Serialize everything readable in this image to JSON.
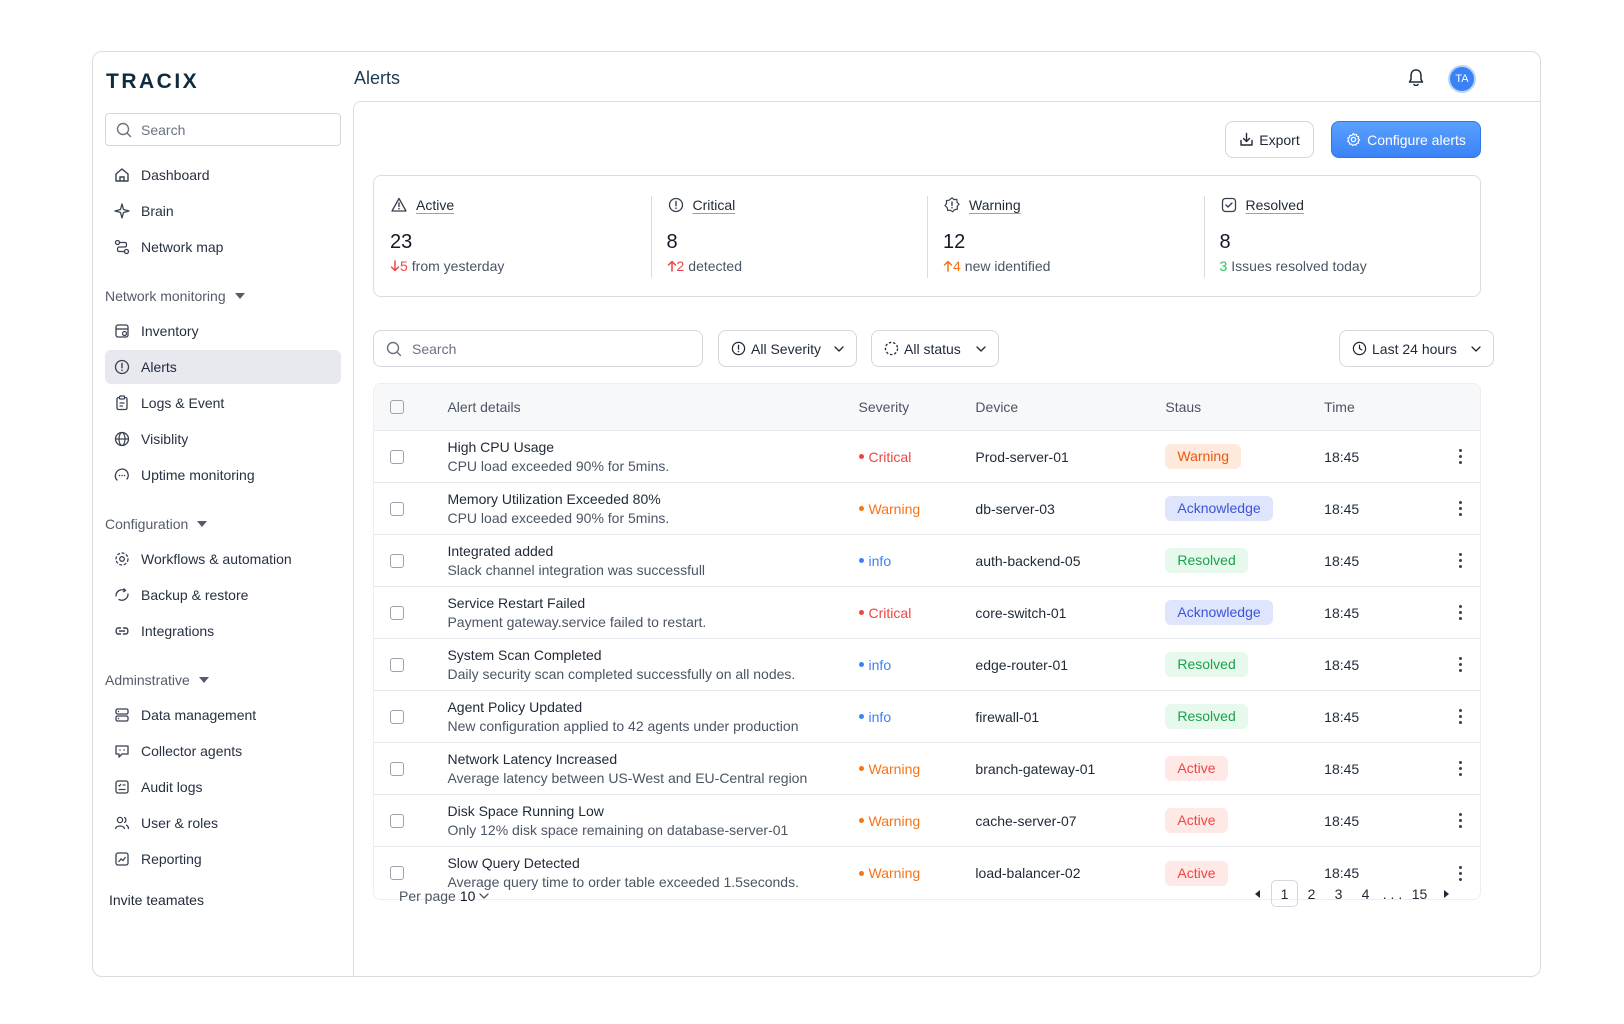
{
  "app": {
    "logo": "TRACIX",
    "page_title": "Alerts",
    "avatar_initials": "TA"
  },
  "sidebar": {
    "search_placeholder": "Search",
    "top_items": [
      {
        "label": "Dashboard",
        "icon": "home-icon"
      },
      {
        "label": "Brain",
        "icon": "sparkle-icon"
      },
      {
        "label": "Network map",
        "icon": "route-icon"
      }
    ],
    "groups": [
      {
        "title": "Network monitoring",
        "items": [
          {
            "label": "Inventory",
            "icon": "inventory-icon"
          },
          {
            "label": "Alerts",
            "icon": "alert-circle-icon",
            "active": true
          },
          {
            "label": "Logs & Event",
            "icon": "clipboard-icon"
          },
          {
            "label": "Visiblity",
            "icon": "globe-icon"
          },
          {
            "label": "Uptime monitoring",
            "icon": "uptime-icon"
          }
        ]
      },
      {
        "title": "Configuration",
        "items": [
          {
            "label": "Workflows & automation",
            "icon": "workflow-gear-icon"
          },
          {
            "label": "Backup & restore",
            "icon": "backup-icon"
          },
          {
            "label": "Integrations",
            "icon": "link-icon"
          }
        ]
      },
      {
        "title": "Adminstrative",
        "items": [
          {
            "label": "Data management",
            "icon": "database-icon"
          },
          {
            "label": "Collector agents",
            "icon": "agent-icon"
          },
          {
            "label": "Audit logs",
            "icon": "audit-icon"
          },
          {
            "label": "User & roles",
            "icon": "users-icon"
          },
          {
            "label": "Reporting",
            "icon": "report-icon"
          }
        ]
      }
    ],
    "invite_label": "Invite teamates"
  },
  "toolbar": {
    "export_label": "Export",
    "configure_label": "Configure alerts"
  },
  "stats": [
    {
      "label": "Active",
      "icon": "warning-triangle-icon",
      "value": "23",
      "delta": "5",
      "delta_dir": "down",
      "delta_text": "from yesterday"
    },
    {
      "label": "Critical",
      "icon": "alert-circle-icon",
      "value": "8",
      "delta": "2",
      "delta_dir": "up-red",
      "delta_text": "detected"
    },
    {
      "label": "Warning",
      "icon": "warning-badge-icon",
      "value": "12",
      "delta": "4",
      "delta_dir": "up",
      "delta_text": "new identified"
    },
    {
      "label": "Resolved",
      "icon": "check-square-icon",
      "value": "8",
      "delta": "3",
      "delta_dir": "none",
      "delta_text": "Issues resolved today"
    }
  ],
  "filters": {
    "search_placeholder": "Search",
    "severity": "All Severity",
    "status": "All status",
    "time": "Last 24 hours"
  },
  "table": {
    "headers": {
      "details": "Alert details",
      "severity": "Severity",
      "device": "Device",
      "status": "Staus",
      "time": "Time"
    },
    "rows": [
      {
        "title": "High CPU Usage",
        "sub": "CPU load exceeded 90% for 5mins.",
        "severity": "Critical",
        "sev_class": "critical",
        "device": "Prod-server-01",
        "status": "Warning",
        "status_class": "warning",
        "time": "18:45"
      },
      {
        "title": "Memory Utilization Exceeded 80%",
        "sub": "CPU load exceeded 90% for 5mins.",
        "severity": "Warning",
        "sev_class": "warning",
        "device": "db-server-03",
        "status": "Acknowledge",
        "status_class": "acknowledge",
        "time": "18:45"
      },
      {
        "title": "Integrated added",
        "sub": "Slack channel integration was successfull",
        "severity": "info",
        "sev_class": "info",
        "device": "auth-backend-05",
        "status": "Resolved",
        "status_class": "resolved",
        "time": "18:45"
      },
      {
        "title": "Service Restart Failed",
        "sub": "Payment gateway.service failed to restart.",
        "severity": "Critical",
        "sev_class": "critical",
        "device": "core-switch-01",
        "status": "Acknowledge",
        "status_class": "acknowledge",
        "time": "18:45"
      },
      {
        "title": "System Scan Completed",
        "sub": "Daily security scan completed successfully on all nodes.",
        "severity": "info",
        "sev_class": "info",
        "device": "edge-router-01",
        "status": "Resolved",
        "status_class": "resolved",
        "time": "18:45"
      },
      {
        "title": "Agent Policy Updated",
        "sub": "New configuration applied to 42 agents under production",
        "severity": "info",
        "sev_class": "info",
        "device": "firewall-01",
        "status": "Resolved",
        "status_class": "resolved",
        "time": "18:45"
      },
      {
        "title": "Network Latency Increased",
        "sub": "Average latency between US-West and EU-Central region",
        "severity": "Warning",
        "sev_class": "warning",
        "device": "branch-gateway-01",
        "status": "Active",
        "status_class": "active",
        "time": "18:45"
      },
      {
        "title": "Disk Space Running Low",
        "sub": "Only 12% disk space remaining on database-server-01",
        "severity": "Warning",
        "sev_class": "warning",
        "device": "cache-server-07",
        "status": "Active",
        "status_class": "active",
        "time": "18:45"
      },
      {
        "title": "Slow Query Detected",
        "sub": "Average query time to order table exceeded 1.5seconds.",
        "severity": "Warning",
        "sev_class": "warning",
        "device": "load-balancer-02",
        "status": "Active",
        "status_class": "active",
        "time": "18:45"
      }
    ]
  },
  "pagination": {
    "per_page_label": "Per page",
    "per_page_value": "10",
    "pages": [
      "1",
      "2",
      "3",
      "4"
    ],
    "ellipsis": ". . .",
    "last_page": "15",
    "current": "1"
  }
}
